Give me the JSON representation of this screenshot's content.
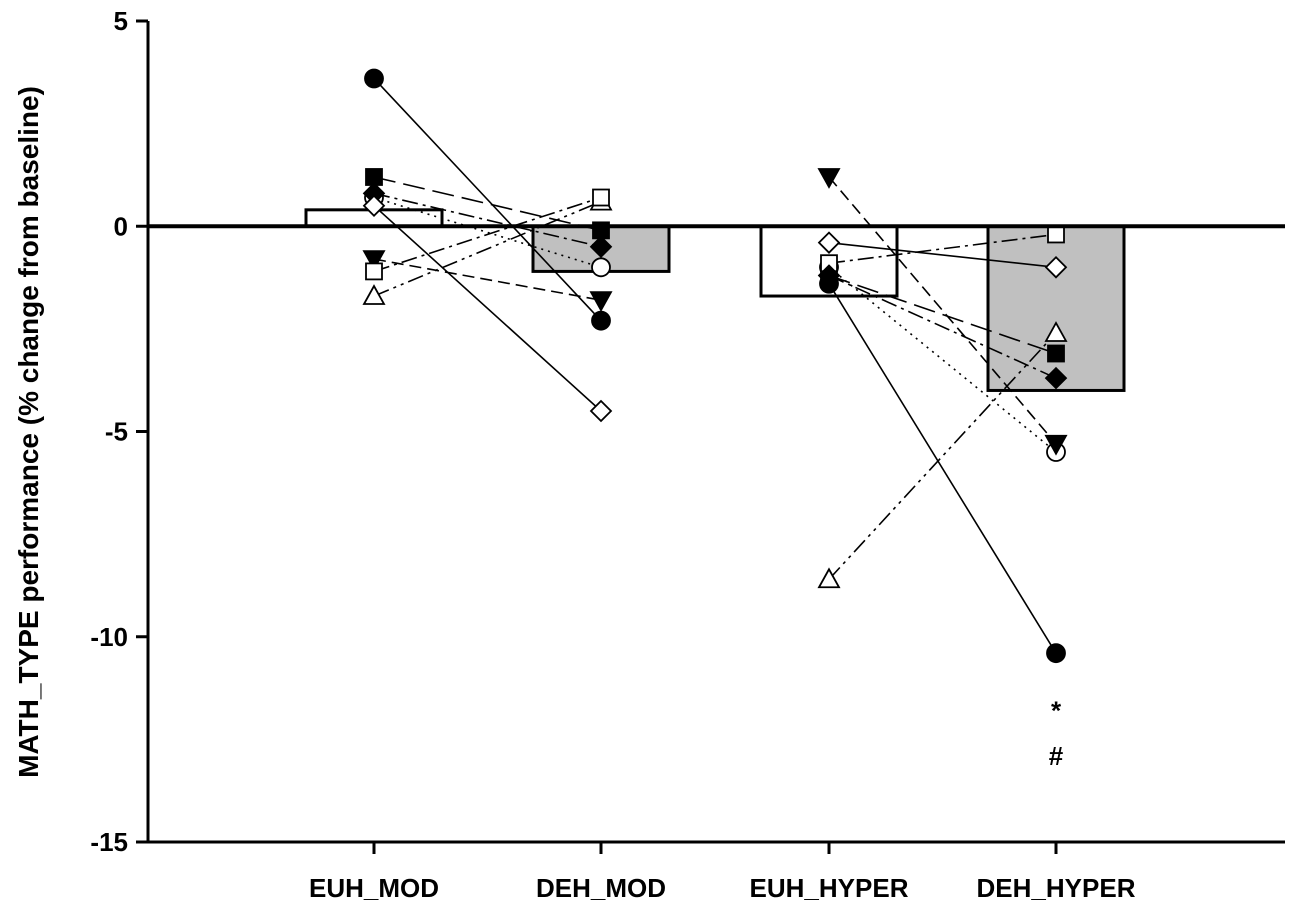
{
  "chart_data": {
    "type": "bar",
    "ylabel": "MATH_TYPE performance (% change from baseline)",
    "xlabel": "",
    "ylim": [
      -15,
      5
    ],
    "yticks": [
      "5",
      "0",
      "-5",
      "-10",
      "-15"
    ],
    "grid": false,
    "categories": [
      "EUH_MOD",
      "DEH_MOD",
      "EUH_HYPER",
      "DEH_HYPER"
    ],
    "bar_values": [
      0.4,
      -1.1,
      -1.7,
      -4.0
    ],
    "bar_colors": [
      "#ffffff",
      "#c0c0c0",
      "#ffffff",
      "#c0c0c0"
    ],
    "individual_series": [
      {
        "marker": "filled-circle",
        "line": "solid",
        "mod": [
          3.6,
          -2.3
        ],
        "hyper": [
          -1.4,
          -10.4
        ]
      },
      {
        "marker": "open-circle",
        "line": "dotted",
        "mod": [
          0.7,
          -1.0
        ],
        "hyper": [
          -1.0,
          -5.5
        ]
      },
      {
        "marker": "filled-triangle-down",
        "line": "dashed",
        "mod": [
          -0.8,
          -1.8
        ],
        "hyper": [
          1.2,
          -5.3
        ]
      },
      {
        "marker": "open-triangle-up",
        "line": "dash-dot-dot",
        "mod": [
          -1.7,
          0.6
        ],
        "hyper": [
          -8.6,
          -2.6
        ]
      },
      {
        "marker": "filled-square",
        "line": "long-dash",
        "mod": [
          1.2,
          -0.1
        ],
        "hyper": [
          -1.2,
          -3.1
        ]
      },
      {
        "marker": "open-square",
        "line": "dash-dot",
        "mod": [
          -1.1,
          0.7
        ],
        "hyper": [
          -0.9,
          -0.2
        ]
      },
      {
        "marker": "filled-diamond",
        "line": "dash-dot",
        "mod": [
          0.8,
          -0.5
        ],
        "hyper": [
          -1.2,
          -3.7
        ]
      },
      {
        "marker": "open-diamond",
        "line": "solid",
        "mod": [
          0.5,
          -4.5
        ],
        "hyper": [
          -0.4,
          -1.0
        ]
      }
    ],
    "annotations": [
      {
        "category": "DEH_HYPER",
        "text": "*",
        "y": -11.8
      },
      {
        "category": "DEH_HYPER",
        "text": "#",
        "y": -12.9
      }
    ]
  }
}
